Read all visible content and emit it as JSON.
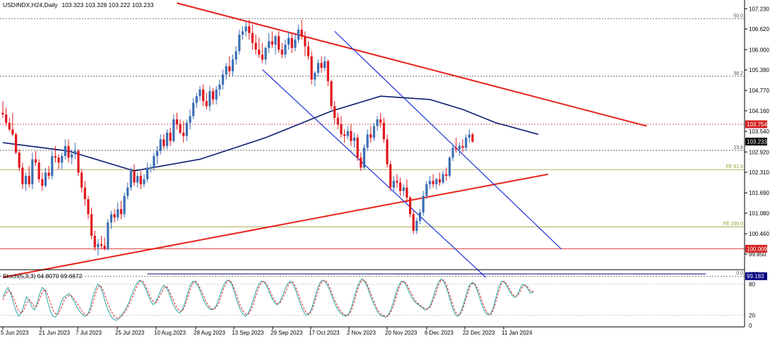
{
  "header": {
    "symbol": "USDINDX,H24,Daily",
    "ohlc": "103.323 103.328 103.222 103.233"
  },
  "price_axis": {
    "ticks": [
      "107.230",
      "106.620",
      "106.000",
      "105.390",
      "104.770",
      "104.160",
      "103.540",
      "102.920",
      "102.310",
      "101.690",
      "101.080",
      "100.460",
      "99.850"
    ]
  },
  "badges": [
    {
      "text": "103.754",
      "value": 103.754,
      "color": "#d42020"
    },
    {
      "text": "103.233",
      "value": 103.233,
      "color": "#000000"
    },
    {
      "text": "100.009",
      "value": 100.009,
      "color": "#d42020"
    },
    {
      "text": "99.183",
      "value": 99.183,
      "color": "#000080"
    }
  ],
  "levels": [
    {
      "label": "50.0",
      "value": 106.93,
      "color": "#555555",
      "style": "dotted"
    },
    {
      "label": "38.2",
      "value": 105.2,
      "color": "#555555",
      "style": "dotted"
    },
    {
      "label": "23.6",
      "value": 102.97,
      "color": "#555555",
      "style": "dotted"
    },
    {
      "label": "0.0",
      "value": 99.183,
      "color": "#555555",
      "style": "dotted"
    },
    {
      "label": "FE 61.8",
      "value": 102.39,
      "color": "#9a9a30",
      "style": "solid"
    },
    {
      "label": "FE 100.0",
      "value": 100.67,
      "color": "#9a9a30",
      "style": "solid"
    },
    {
      "label": "",
      "value": 103.754,
      "color": "#d42020",
      "style": "dotted"
    },
    {
      "label": "",
      "value": 100.009,
      "color": "#d42020",
      "style": "solid"
    }
  ],
  "stoch": {
    "label": "Stoch(5,3,3) 64.8070 69.6672",
    "ticks": [
      "100",
      "80",
      "20",
      "0"
    ],
    "main": [
      55,
      66,
      74,
      62,
      44,
      28,
      18,
      24,
      40,
      56,
      48,
      36,
      30,
      44,
      62,
      74,
      68,
      46,
      28,
      18,
      16,
      28,
      44,
      54,
      58,
      62,
      56,
      46,
      36,
      28,
      22,
      18,
      20,
      32,
      54,
      70,
      80,
      76,
      60,
      42,
      28,
      18,
      12,
      10,
      14,
      20,
      28,
      36,
      48,
      62,
      74,
      84,
      88,
      82,
      72,
      60,
      48,
      40,
      46,
      58,
      70,
      78,
      74,
      62,
      48,
      36,
      28,
      24,
      30,
      44,
      62,
      78,
      86,
      84,
      76,
      64,
      50,
      40,
      34,
      30,
      32,
      40,
      54,
      70,
      82,
      88,
      86,
      76,
      60,
      44,
      30,
      22,
      18,
      24,
      36,
      52,
      68,
      80,
      86,
      84,
      76,
      64,
      52,
      44,
      40,
      46,
      58,
      72,
      82,
      86,
      80,
      68,
      52,
      38,
      26,
      20,
      22,
      32,
      50,
      68,
      82,
      88,
      86,
      78,
      66,
      52,
      40,
      30,
      24,
      20,
      18,
      22,
      34,
      52,
      70,
      84,
      90,
      86,
      76,
      62,
      48,
      36,
      26,
      20,
      18,
      16,
      20,
      30,
      46,
      64,
      78,
      86,
      84,
      76,
      64,
      54,
      46,
      42,
      38,
      34,
      30,
      32,
      40,
      54,
      70,
      84,
      90,
      86,
      74,
      58,
      40,
      26,
      18,
      20,
      32,
      50,
      68,
      80,
      84,
      78,
      64,
      48,
      34,
      24,
      20,
      24,
      38,
      58,
      76,
      86,
      84,
      76,
      66,
      58,
      54,
      60,
      72,
      80,
      78,
      70,
      62,
      66
    ],
    "signal": [
      50,
      60,
      68,
      65,
      54,
      40,
      28,
      24,
      30,
      44,
      50,
      44,
      36,
      38,
      52,
      66,
      70,
      60,
      44,
      30,
      22,
      22,
      34,
      46,
      54,
      58,
      58,
      52,
      44,
      36,
      28,
      22,
      20,
      26,
      42,
      60,
      74,
      78,
      68,
      54,
      40,
      28,
      20,
      14,
      14,
      18,
      24,
      32,
      42,
      54,
      66,
      78,
      86,
      86,
      78,
      66,
      54,
      46,
      44,
      52,
      62,
      72,
      76,
      68,
      56,
      44,
      34,
      28,
      28,
      38,
      54,
      70,
      82,
      86,
      80,
      70,
      58,
      46,
      38,
      32,
      32,
      36,
      46,
      62,
      76,
      86,
      88,
      80,
      68,
      52,
      38,
      28,
      22,
      22,
      30,
      44,
      60,
      74,
      84,
      86,
      80,
      70,
      58,
      48,
      42,
      44,
      52,
      64,
      76,
      84,
      84,
      74,
      60,
      46,
      34,
      24,
      22,
      28,
      42,
      60,
      76,
      86,
      88,
      82,
      72,
      58,
      46,
      36,
      28,
      22,
      20,
      20,
      28,
      44,
      62,
      78,
      88,
      88,
      80,
      68,
      54,
      42,
      30,
      24,
      20,
      18,
      18,
      26,
      38,
      56,
      72,
      84,
      86,
      80,
      70,
      60,
      50,
      44,
      40,
      36,
      32,
      32,
      36,
      48,
      62,
      78,
      88,
      88,
      80,
      64,
      48,
      32,
      22,
      20,
      28,
      44,
      60,
      76,
      82,
      80,
      70,
      56,
      40,
      30,
      22,
      22,
      32,
      50,
      68,
      82,
      86,
      80,
      70,
      62,
      56,
      58,
      66,
      76,
      78,
      74,
      66,
      66
    ]
  },
  "dates": [
    "5 Jun 2023",
    "21 Jun 2023",
    "7 Jul 2023",
    "25 Jul 2023",
    "10 Aug 2023",
    "28 Aug 2023",
    "13 Sep 2023",
    "29 Sep 2023",
    "17 Oct 2023",
    "2 Nov 2023",
    "20 Nov 2023",
    "6 Dec 2023",
    "22 Dec 2023",
    "11 Jan 2024"
  ],
  "chart_data": {
    "type": "candlestick",
    "title": "USDINDX,H24,Daily",
    "ylim": [
      99.4,
      107.45
    ],
    "colors": {
      "up": "#3a6fb4",
      "down": "#e0161c",
      "ma": "#0b1f70",
      "trendline": "#e8221c",
      "channel": "#1a2fd8"
    },
    "ma_period_note": "",
    "candles": [
      [
        104.1,
        104.45,
        103.95,
        104.05
      ],
      [
        104.05,
        104.25,
        103.7,
        103.8
      ],
      [
        103.8,
        103.95,
        103.55,
        103.6
      ],
      [
        103.6,
        104.1,
        103.4,
        103.45
      ],
      [
        103.45,
        103.5,
        102.85,
        102.9
      ],
      [
        102.9,
        103.0,
        102.35,
        102.45
      ],
      [
        102.45,
        102.6,
        101.8,
        101.95
      ],
      [
        101.95,
        102.3,
        101.75,
        102.2
      ],
      [
        102.2,
        102.5,
        101.85,
        101.95
      ],
      [
        101.95,
        102.9,
        101.8,
        102.7
      ],
      [
        102.7,
        102.95,
        102.5,
        102.6
      ],
      [
        102.6,
        102.7,
        102.0,
        102.1
      ],
      [
        102.1,
        102.3,
        101.75,
        101.9
      ],
      [
        101.9,
        102.45,
        101.85,
        102.3
      ],
      [
        102.3,
        102.5,
        102.1,
        102.2
      ],
      [
        102.2,
        102.95,
        102.1,
        102.8
      ],
      [
        102.8,
        103.1,
        102.6,
        102.75
      ],
      [
        102.75,
        102.85,
        102.4,
        102.6
      ],
      [
        102.6,
        102.9,
        102.4,
        102.8
      ],
      [
        102.8,
        103.3,
        102.7,
        103.1
      ],
      [
        103.1,
        103.3,
        102.6,
        102.75
      ],
      [
        102.75,
        103.0,
        102.55,
        102.85
      ],
      [
        102.85,
        103.2,
        102.7,
        102.95
      ],
      [
        102.95,
        103.0,
        102.2,
        102.3
      ],
      [
        102.3,
        102.4,
        101.7,
        101.85
      ],
      [
        101.85,
        102.05,
        101.3,
        101.5
      ],
      [
        101.5,
        101.6,
        100.9,
        101.05
      ],
      [
        101.05,
        101.25,
        100.3,
        100.4
      ],
      [
        100.4,
        100.55,
        99.95,
        100.05
      ],
      [
        100.05,
        100.3,
        99.8,
        100.15
      ],
      [
        100.15,
        100.4,
        100.0,
        100.1
      ],
      [
        100.1,
        100.35,
        99.95,
        100.0
      ],
      [
        100.0,
        100.9,
        99.95,
        100.8
      ],
      [
        100.8,
        101.15,
        100.6,
        101.05
      ],
      [
        101.05,
        101.2,
        100.8,
        100.95
      ],
      [
        100.95,
        101.4,
        100.85,
        101.2
      ],
      [
        101.2,
        101.45,
        100.9,
        101.05
      ],
      [
        101.05,
        101.7,
        100.95,
        101.6
      ],
      [
        101.6,
        102.0,
        101.5,
        101.85
      ],
      [
        101.85,
        102.45,
        101.75,
        102.35
      ],
      [
        102.35,
        102.55,
        101.9,
        102.0
      ],
      [
        102.0,
        102.3,
        101.85,
        102.2
      ],
      [
        102.2,
        102.35,
        101.8,
        101.95
      ],
      [
        101.95,
        102.25,
        101.85,
        102.1
      ],
      [
        102.1,
        102.6,
        102.0,
        102.45
      ],
      [
        102.45,
        102.55,
        102.3,
        102.45
      ],
      [
        102.45,
        102.9,
        102.35,
        102.8
      ],
      [
        102.8,
        103.1,
        102.55,
        102.95
      ],
      [
        102.95,
        103.45,
        102.85,
        103.3
      ],
      [
        103.3,
        103.45,
        103.0,
        103.1
      ],
      [
        103.1,
        103.6,
        103.0,
        103.5
      ],
      [
        103.5,
        103.65,
        103.1,
        103.25
      ],
      [
        103.25,
        104.05,
        103.2,
        103.9
      ],
      [
        103.9,
        104.1,
        103.6,
        103.75
      ],
      [
        103.75,
        103.9,
        103.45,
        103.5
      ],
      [
        103.5,
        103.85,
        103.2,
        103.4
      ],
      [
        103.4,
        103.9,
        103.25,
        103.8
      ],
      [
        103.8,
        104.2,
        103.6,
        104.0
      ],
      [
        104.0,
        104.55,
        103.9,
        104.4
      ],
      [
        104.4,
        104.7,
        104.25,
        104.6
      ],
      [
        104.6,
        104.9,
        104.45,
        104.8
      ],
      [
        104.8,
        104.95,
        104.3,
        104.45
      ],
      [
        104.45,
        104.7,
        104.2,
        104.3
      ],
      [
        104.3,
        104.9,
        104.15,
        104.75
      ],
      [
        104.75,
        104.85,
        104.35,
        104.5
      ],
      [
        104.5,
        104.9,
        104.35,
        104.8
      ],
      [
        104.8,
        105.1,
        104.6,
        104.95
      ],
      [
        104.95,
        105.4,
        104.8,
        105.25
      ],
      [
        105.25,
        105.6,
        105.1,
        105.5
      ],
      [
        105.5,
        105.8,
        105.2,
        105.35
      ],
      [
        105.35,
        105.85,
        105.2,
        105.7
      ],
      [
        105.7,
        106.1,
        105.55,
        105.95
      ],
      [
        105.95,
        106.6,
        105.85,
        106.45
      ],
      [
        106.45,
        106.7,
        106.3,
        106.55
      ],
      [
        106.55,
        106.85,
        106.4,
        106.7
      ],
      [
        106.7,
        106.9,
        106.3,
        106.5
      ],
      [
        106.5,
        106.75,
        106.0,
        106.2
      ],
      [
        106.2,
        106.45,
        105.85,
        106.0
      ],
      [
        106.0,
        106.35,
        105.75,
        105.85
      ],
      [
        105.85,
        106.2,
        105.6,
        105.7
      ],
      [
        105.7,
        106.1,
        105.55,
        106.05
      ],
      [
        106.05,
        106.5,
        105.9,
        106.25
      ],
      [
        106.25,
        106.55,
        106.05,
        106.15
      ],
      [
        106.15,
        106.45,
        105.85,
        106.4
      ],
      [
        106.4,
        106.55,
        105.9,
        106.0
      ],
      [
        106.0,
        106.2,
        105.75,
        105.85
      ],
      [
        105.85,
        106.3,
        105.75,
        106.15
      ],
      [
        106.15,
        106.55,
        106.0,
        106.35
      ],
      [
        106.35,
        106.5,
        105.9,
        106.05
      ],
      [
        106.05,
        106.45,
        105.95,
        106.3
      ],
      [
        106.3,
        106.75,
        106.2,
        106.6
      ],
      [
        106.6,
        106.9,
        106.3,
        106.4
      ],
      [
        106.4,
        106.55,
        105.8,
        106.1
      ],
      [
        106.1,
        106.25,
        105.7,
        105.8
      ],
      [
        105.8,
        105.95,
        104.95,
        105.1
      ],
      [
        105.1,
        105.35,
        104.9,
        105.3
      ],
      [
        105.3,
        105.7,
        105.2,
        105.6
      ],
      [
        105.6,
        105.8,
        105.3,
        105.45
      ],
      [
        105.45,
        105.8,
        105.35,
        105.65
      ],
      [
        105.65,
        105.7,
        104.9,
        105.05
      ],
      [
        105.05,
        105.1,
        104.2,
        104.3
      ],
      [
        104.3,
        104.45,
        103.75,
        103.95
      ],
      [
        103.95,
        104.1,
        103.6,
        103.75
      ],
      [
        103.75,
        104.0,
        103.35,
        103.45
      ],
      [
        103.45,
        103.6,
        103.2,
        103.4
      ],
      [
        103.4,
        103.7,
        103.3,
        103.55
      ],
      [
        103.55,
        103.75,
        103.1,
        103.25
      ],
      [
        103.25,
        103.5,
        103.05,
        103.35
      ],
      [
        103.35,
        103.45,
        102.65,
        102.75
      ],
      [
        102.75,
        102.9,
        102.35,
        102.45
      ],
      [
        102.45,
        103.15,
        102.4,
        103.05
      ],
      [
        103.05,
        103.6,
        102.95,
        103.45
      ],
      [
        103.45,
        103.7,
        103.2,
        103.35
      ],
      [
        103.35,
        103.8,
        103.25,
        103.7
      ],
      [
        103.7,
        104.0,
        103.55,
        103.9
      ],
      [
        103.9,
        104.1,
        103.65,
        103.8
      ],
      [
        103.8,
        103.95,
        103.2,
        103.3
      ],
      [
        103.3,
        103.45,
        102.45,
        102.55
      ],
      [
        102.55,
        102.65,
        101.75,
        101.85
      ],
      [
        101.85,
        102.2,
        101.75,
        102.05
      ],
      [
        102.05,
        102.25,
        101.85,
        102.0
      ],
      [
        102.0,
        102.15,
        101.6,
        101.75
      ],
      [
        101.75,
        101.95,
        101.6,
        101.85
      ],
      [
        101.85,
        102.1,
        101.4,
        101.55
      ],
      [
        101.55,
        101.6,
        100.95,
        101.05
      ],
      [
        101.05,
        101.15,
        100.45,
        100.55
      ],
      [
        100.55,
        100.95,
        100.45,
        100.85
      ],
      [
        100.85,
        101.2,
        100.75,
        101.1
      ],
      [
        101.1,
        101.75,
        101.0,
        101.6
      ],
      [
        101.6,
        102.05,
        101.5,
        101.95
      ],
      [
        101.95,
        102.2,
        101.8,
        102.05
      ],
      [
        102.05,
        102.25,
        101.85,
        101.95
      ],
      [
        101.95,
        102.15,
        101.8,
        102.1
      ],
      [
        102.1,
        102.3,
        101.9,
        102.0
      ],
      [
        102.0,
        102.35,
        101.95,
        102.25
      ],
      [
        102.25,
        102.45,
        102.05,
        102.2
      ],
      [
        102.2,
        102.8,
        102.15,
        102.75
      ],
      [
        102.75,
        103.15,
        102.65,
        103.05
      ],
      [
        103.05,
        103.35,
        102.9,
        103.0
      ],
      [
        103.0,
        103.2,
        102.8,
        103.1
      ],
      [
        103.1,
        103.3,
        102.9,
        103.05
      ],
      [
        103.05,
        103.45,
        102.95,
        103.35
      ],
      [
        103.35,
        103.6,
        103.2,
        103.45
      ],
      [
        103.45,
        103.5,
        103.2,
        103.23
      ]
    ],
    "ma": [
      [
        0,
        103.2
      ],
      [
        20,
        102.95
      ],
      [
        40,
        102.35
      ],
      [
        60,
        102.7
      ],
      [
        80,
        103.35
      ],
      [
        100,
        104.15
      ],
      [
        115,
        104.6
      ],
      [
        130,
        104.5
      ],
      [
        140,
        104.2
      ],
      [
        150,
        103.8
      ],
      [
        163,
        103.45
      ]
    ],
    "lines": [
      {
        "name": "resistance",
        "color": "#e8221c",
        "x1": 53,
        "y1": 107.4,
        "x2": 196,
        "y2": 103.7,
        "width": 2
      },
      {
        "name": "support",
        "color": "#e8221c",
        "x1": 0,
        "y1": 99.15,
        "x2": 166,
        "y2": 102.25,
        "width": 2
      },
      {
        "name": "channel-upper",
        "color": "#1a2fd8",
        "x1": 101,
        "y1": 106.55,
        "x2": 170,
        "y2": 100.0,
        "width": 1.2
      },
      {
        "name": "channel-lower",
        "color": "#1a2fd8",
        "x1": 79,
        "y1": 105.4,
        "x2": 147,
        "y2": 99.15,
        "width": 1.2
      },
      {
        "name": "level-99183",
        "color": "#000080",
        "x1": 44,
        "y1": 99.25,
        "x2": 214,
        "y2": 99.25,
        "width": 1
      }
    ]
  }
}
